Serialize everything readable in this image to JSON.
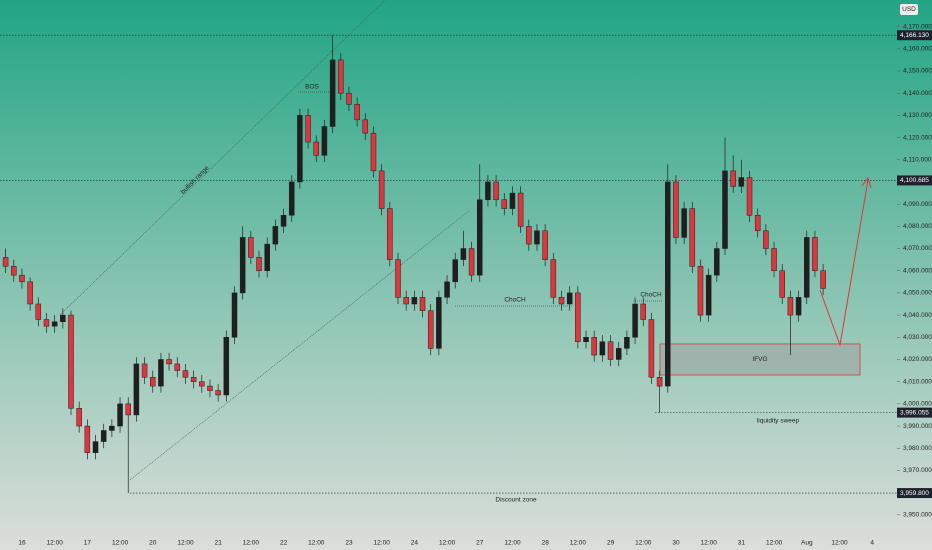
{
  "chart_data": {
    "type": "candlestick",
    "currency": "USD",
    "up_color": "#1f1f1f",
    "down_color": "#e0353d",
    "categories": [
      "16",
      "12:00",
      "17",
      "12:00",
      "20",
      "12:00",
      "21",
      "12:00",
      "22",
      "12:00",
      "23",
      "12:00",
      "24",
      "12:00",
      "27",
      "12:00",
      "28",
      "12:00",
      "29",
      "12:00",
      "30",
      "12:00",
      "31",
      "12:00",
      "Aug",
      "12:00",
      "4"
    ],
    "ylim": [
      3940,
      4182
    ],
    "yticks": [
      {
        "value": 3950,
        "label": "3,950.000"
      },
      {
        "value": 3960,
        "label": "3,960.000"
      },
      {
        "value": 3970,
        "label": "3,970.000"
      },
      {
        "value": 3980,
        "label": "3,980.000"
      },
      {
        "value": 3990,
        "label": "3,990.000"
      },
      {
        "value": 4000,
        "label": "4,000.000"
      },
      {
        "value": 4010,
        "label": "4,010.000"
      },
      {
        "value": 4020,
        "label": "4,020.000"
      },
      {
        "value": 4030,
        "label": "4,030.000"
      },
      {
        "value": 4040,
        "label": "4,040.000"
      },
      {
        "value": 4050,
        "label": "4,050.000"
      },
      {
        "value": 4060,
        "label": "4,060.000"
      },
      {
        "value": 4070,
        "label": "4,070.000"
      },
      {
        "value": 4080,
        "label": "4,080.000"
      },
      {
        "value": 4090,
        "label": "4,090.000"
      },
      {
        "value": 4100,
        "label": "4,100.000"
      },
      {
        "value": 4110,
        "label": "4,110.000"
      },
      {
        "value": 4120,
        "label": "4,120.000"
      },
      {
        "value": 4130,
        "label": "4,130.000"
      },
      {
        "value": 4140,
        "label": "4,140.000"
      },
      {
        "value": 4150,
        "label": "4,150.000"
      },
      {
        "value": 4160,
        "label": "4,160.000"
      },
      {
        "value": 4170,
        "label": "4,170.000"
      }
    ],
    "price_lines": [
      {
        "value": 4166.13,
        "label": "4,166.130"
      },
      {
        "value": 4100.685,
        "label": "4,100.685"
      },
      {
        "value": 3996.055,
        "label": "3,996.055"
      },
      {
        "value": 3959.8,
        "label": "3,959.800"
      }
    ],
    "zone": {
      "label": "IFVG",
      "top": 4027,
      "bottom": 4013
    },
    "annotations": [
      "BOS",
      "ChoCH",
      "ChoCH",
      "liquidity sweep",
      "Discount zone",
      "bullish range"
    ],
    "ohlc": [
      [
        4066,
        4070,
        4059,
        4062
      ],
      [
        4062,
        4065,
        4055,
        4058
      ],
      [
        4058,
        4061,
        4052,
        4055
      ],
      [
        4055,
        4057,
        4042,
        4045
      ],
      [
        4045,
        4048,
        4035,
        4038
      ],
      [
        4038,
        4041,
        4032,
        4035
      ],
      [
        4035,
        4040,
        4032,
        4037
      ],
      [
        4037,
        4043,
        4034,
        4040
      ],
      [
        4040,
        4042,
        3995,
        3998
      ],
      [
        3998,
        4001,
        3987,
        3990
      ],
      [
        3990,
        3993,
        3975,
        3978
      ],
      [
        3978,
        3986,
        3975,
        3983
      ],
      [
        3983,
        3991,
        3980,
        3988
      ],
      [
        3988,
        3993,
        3985,
        3990
      ],
      [
        3990,
        4003,
        3987,
        4000
      ],
      [
        4000,
        4003,
        3959.8,
        3995
      ],
      [
        3995,
        4021,
        3992,
        4018
      ],
      [
        4018,
        4021,
        4009,
        4012
      ],
      [
        4012,
        4015,
        4005,
        4008
      ],
      [
        4008,
        4023,
        4005,
        4020
      ],
      [
        4020,
        4023,
        4015,
        4018
      ],
      [
        4018,
        4021,
        4012,
        4015
      ],
      [
        4015,
        4018,
        4009,
        4012
      ],
      [
        4012,
        4015,
        4007,
        4010
      ],
      [
        4010,
        4013,
        4005,
        4008
      ],
      [
        4008,
        4011,
        4003,
        4006
      ],
      [
        4006,
        4009,
        4001,
        4004
      ],
      [
        4004,
        4033,
        4001,
        4030
      ],
      [
        4030,
        4053,
        4027,
        4050
      ],
      [
        4050,
        4080,
        4047,
        4075
      ],
      [
        4075,
        4078,
        4063,
        4066
      ],
      [
        4066,
        4069,
        4057,
        4060
      ],
      [
        4060,
        4075,
        4057,
        4072
      ],
      [
        4072,
        4083,
        4069,
        4080
      ],
      [
        4080,
        4088,
        4077,
        4085
      ],
      [
        4085,
        4103,
        4082,
        4100
      ],
      [
        4100,
        4133,
        4097,
        4130
      ],
      [
        4130,
        4133,
        4115,
        4118
      ],
      [
        4118,
        4121,
        4109,
        4112
      ],
      [
        4112,
        4128,
        4109,
        4125
      ],
      [
        4125,
        4166.13,
        4122,
        4155
      ],
      [
        4155,
        4158,
        4137,
        4140
      ],
      [
        4140,
        4143,
        4132,
        4135
      ],
      [
        4135,
        4138,
        4125,
        4128
      ],
      [
        4128,
        4131,
        4119,
        4122
      ],
      [
        4122,
        4125,
        4102,
        4105
      ],
      [
        4105,
        4108,
        4085,
        4088
      ],
      [
        4088,
        4091,
        4062,
        4065
      ],
      [
        4065,
        4068,
        4045,
        4048
      ],
      [
        4048,
        4051,
        4042,
        4045
      ],
      [
        4045,
        4051,
        4042,
        4048
      ],
      [
        4048,
        4051,
        4039,
        4042
      ],
      [
        4042,
        4045,
        4022,
        4025
      ],
      [
        4025,
        4051,
        4022,
        4048
      ],
      [
        4048,
        4058,
        4045,
        4055
      ],
      [
        4055,
        4068,
        4052,
        4065
      ],
      [
        4065,
        4078,
        4062,
        4070
      ],
      [
        4070,
        4073,
        4055,
        4058
      ],
      [
        4058,
        4108,
        4055,
        4092
      ],
      [
        4092,
        4103,
        4089,
        4100
      ],
      [
        4100,
        4103,
        4089,
        4092
      ],
      [
        4092,
        4095,
        4085,
        4088
      ],
      [
        4088,
        4098,
        4085,
        4095
      ],
      [
        4095,
        4098,
        4077,
        4080
      ],
      [
        4080,
        4083,
        4069,
        4072
      ],
      [
        4072,
        4081,
        4069,
        4078
      ],
      [
        4078,
        4081,
        4062,
        4065
      ],
      [
        4065,
        4068,
        4045,
        4048
      ],
      [
        4048,
        4051,
        4042,
        4045
      ],
      [
        4045,
        4053,
        4042,
        4050
      ],
      [
        4050,
        4053,
        4025,
        4028
      ],
      [
        4028,
        4033,
        4025,
        4030
      ],
      [
        4030,
        4033,
        4019,
        4022
      ],
      [
        4022,
        4031,
        4019,
        4028
      ],
      [
        4028,
        4031,
        4017,
        4020
      ],
      [
        4020,
        4028,
        4017,
        4025
      ],
      [
        4025,
        4033,
        4022,
        4030
      ],
      [
        4030,
        4048,
        4027,
        4045
      ],
      [
        4045,
        4048,
        4035,
        4038
      ],
      [
        4038,
        4041,
        4009,
        4012
      ],
      [
        4012,
        4015,
        3996.055,
        4008
      ],
      [
        4008,
        4108,
        4005,
        4100
      ],
      [
        4100,
        4103,
        4072,
        4075
      ],
      [
        4075,
        4091,
        4072,
        4088
      ],
      [
        4088,
        4091,
        4059,
        4062
      ],
      [
        4062,
        4065,
        4037,
        4040
      ],
      [
        4040,
        4061,
        4037,
        4058
      ],
      [
        4058,
        4073,
        4055,
        4070
      ],
      [
        4070,
        4120,
        4067,
        4105
      ],
      [
        4105,
        4112,
        4095,
        4098
      ],
      [
        4098,
        4110,
        4095,
        4102
      ],
      [
        4102,
        4105,
        4082,
        4085
      ],
      [
        4085,
        4088,
        4075,
        4078
      ],
      [
        4078,
        4081,
        4067,
        4070
      ],
      [
        4070,
        4073,
        4057,
        4060
      ],
      [
        4060,
        4063,
        4045,
        4048
      ],
      [
        4048,
        4051,
        4022,
        4040
      ],
      [
        4040,
        4051,
        4037,
        4048
      ],
      [
        4048,
        4078,
        4045,
        4075
      ],
      [
        4075,
        4078,
        4057,
        4060
      ],
      [
        4060,
        4063,
        4049,
        4052
      ]
    ]
  }
}
